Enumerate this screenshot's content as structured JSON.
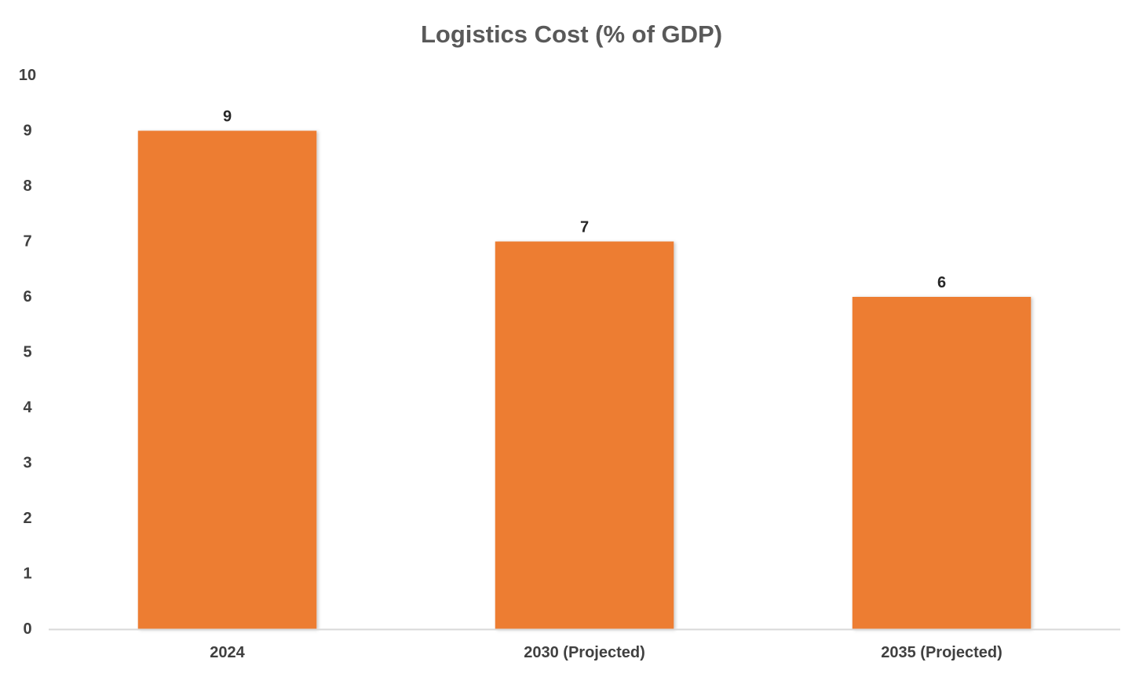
{
  "chart_data": {
    "type": "bar",
    "title": "Logistics Cost (% of GDP)",
    "categories": [
      "2024",
      "2030 (Projected)",
      "2035 (Projected)"
    ],
    "values": [
      9,
      7,
      6
    ],
    "data_labels": [
      "9",
      "7",
      "6"
    ],
    "xlabel": "",
    "ylabel": "",
    "ylim": [
      0,
      10
    ],
    "yticks": [
      "0",
      "1",
      "2",
      "3",
      "4",
      "5",
      "6",
      "7",
      "8",
      "9",
      "10"
    ],
    "grid": false,
    "legend": "none",
    "bar_color": "#ED7D31",
    "axis_color": "#D9D9D9"
  }
}
